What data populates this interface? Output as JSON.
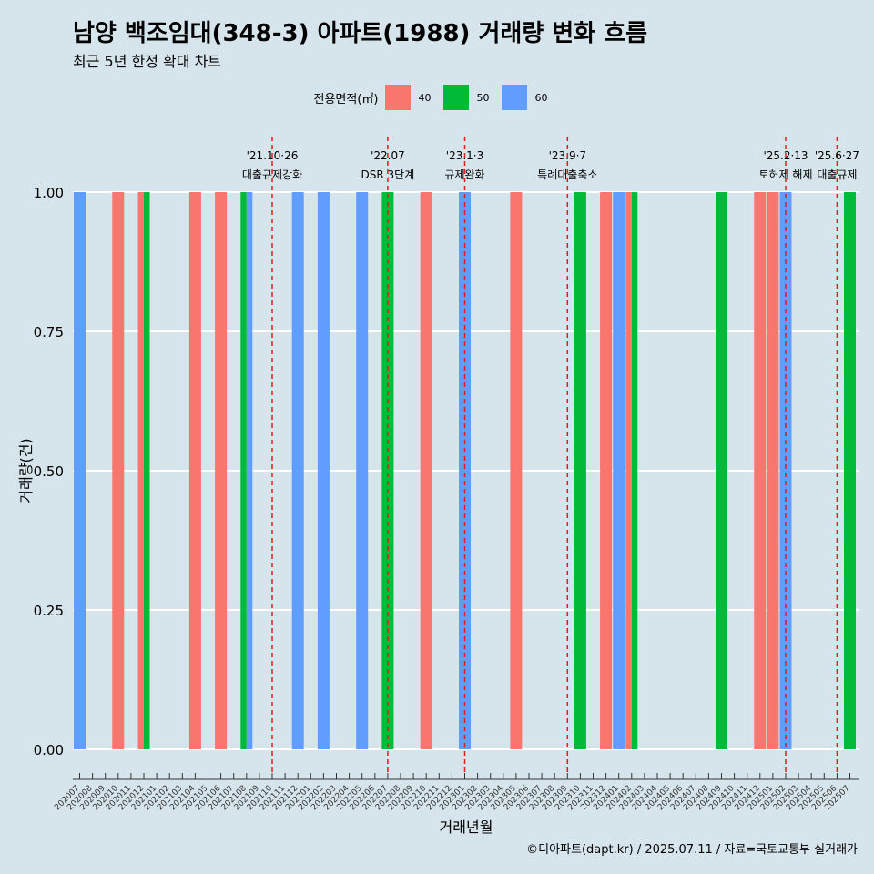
{
  "title": "남양 백조임대(348-3) 아파트(1988) 거래량 변화 흐름",
  "subtitle": "최근 5년 한정 확대 차트",
  "legend": {
    "title": "전용면적(㎡)",
    "items": [
      {
        "label": "40",
        "color": "#f8766d"
      },
      {
        "label": "50",
        "color": "#00ba38"
      },
      {
        "label": "60",
        "color": "#619cff"
      }
    ]
  },
  "caption": "©디아파트(dapt.kr) / 2025.07.11 / 자료=국토교통부 실거래가",
  "chart_data": {
    "type": "bar",
    "stacked": true,
    "xlabel": "거래년월",
    "ylabel": "거래량(건)",
    "ylim": [
      0,
      1
    ],
    "yticks": [
      "0.00",
      "0.25",
      "0.50",
      "0.75",
      "1.00"
    ],
    "grid": "horizontal",
    "legend_position": "top",
    "categories": [
      "202007",
      "202008",
      "202009",
      "202010",
      "202011",
      "202012",
      "202101",
      "202102",
      "202103",
      "202104",
      "202105",
      "202106",
      "202107",
      "202108",
      "202109",
      "202110",
      "202111",
      "202112",
      "202201",
      "202202",
      "202203",
      "202204",
      "202205",
      "202206",
      "202207",
      "202208",
      "202209",
      "202210",
      "202211",
      "202212",
      "202301",
      "202302",
      "202303",
      "202304",
      "202305",
      "202306",
      "202307",
      "202308",
      "202309",
      "202310",
      "202311",
      "202312",
      "202401",
      "202402",
      "202403",
      "202404",
      "202405",
      "202406",
      "202407",
      "202408",
      "202409",
      "202410",
      "202411",
      "202412",
      "202501",
      "202502",
      "202503",
      "202504",
      "202505",
      "202506",
      "202507"
    ],
    "bars": [
      {
        "x": "202007",
        "area": "60",
        "value": 1
      },
      {
        "x": "202010",
        "area": "40",
        "value": 1
      },
      {
        "x": "202012",
        "area": "40",
        "value": 1
      },
      {
        "x": "202012",
        "area": "50",
        "value": 1
      },
      {
        "x": "202104",
        "area": "40",
        "value": 1
      },
      {
        "x": "202106",
        "area": "40",
        "value": 1
      },
      {
        "x": "202108",
        "area": "50",
        "value": 1
      },
      {
        "x": "202108",
        "area": "60",
        "value": 1
      },
      {
        "x": "202112",
        "area": "60",
        "value": 1
      },
      {
        "x": "202202",
        "area": "60",
        "value": 1
      },
      {
        "x": "202205",
        "area": "60",
        "value": 1
      },
      {
        "x": "202207",
        "area": "50",
        "value": 1
      },
      {
        "x": "202210",
        "area": "40",
        "value": 1
      },
      {
        "x": "202301",
        "area": "60",
        "value": 1
      },
      {
        "x": "202305",
        "area": "40",
        "value": 1
      },
      {
        "x": "202310",
        "area": "50",
        "value": 1
      },
      {
        "x": "202312",
        "area": "40",
        "value": 1
      },
      {
        "x": "202401",
        "area": "60",
        "value": 1
      },
      {
        "x": "202402",
        "area": "40",
        "value": 1
      },
      {
        "x": "202402",
        "area": "50",
        "value": 1
      },
      {
        "x": "202409",
        "area": "50",
        "value": 1
      },
      {
        "x": "202412",
        "area": "40",
        "value": 1
      },
      {
        "x": "202501",
        "area": "40",
        "value": 1
      },
      {
        "x": "202502",
        "area": "60",
        "value": 1
      },
      {
        "x": "202507",
        "area": "50",
        "value": 1
      }
    ],
    "events": [
      {
        "x": "202110",
        "date": "'21.10·26",
        "label": "대출규제강화"
      },
      {
        "x": "202207",
        "date": "'22.07",
        "label": "DSR 3단계"
      },
      {
        "x": "202301",
        "date": "'23.1·3",
        "label": "규제완화"
      },
      {
        "x": "202309",
        "date": "'23.9·7",
        "label": "특례대출축소"
      },
      {
        "x": "202502",
        "date": "'25.2·13",
        "label": "토허제 해제"
      },
      {
        "x": "202506",
        "date": "'25.6·27",
        "label": "대출규제"
      }
    ]
  }
}
